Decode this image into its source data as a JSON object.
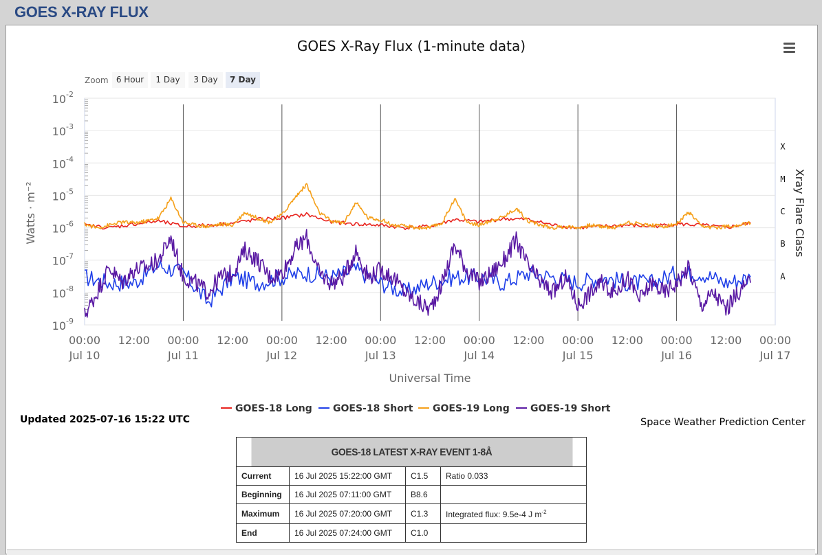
{
  "page": {
    "header": "GOES X-RAY FLUX"
  },
  "toolbar": {
    "zoom_label": "Zoom",
    "zoom_buttons": [
      "6 Hour",
      "1 Day",
      "3 Day",
      "7 Day"
    ],
    "zoom_selected": "7 Day"
  },
  "status": {
    "updated": "Updated 2025-07-16 15:22 UTC",
    "credit": "Space Weather Prediction Center"
  },
  "colors": {
    "goes18_long": "#e8231e",
    "goes18_short": "#1f3fe8",
    "goes19_long": "#f5a01a",
    "goes19_short": "#5a1aa3",
    "header_text": "#2a4a84"
  },
  "chart_data": {
    "type": "line",
    "title": "GOES X-Ray Flux (1-minute data)",
    "xlabel": "Universal Time",
    "ylabel": "Watts · m⁻²",
    "y2label": "Xray Flare Class",
    "yscale": "log",
    "ylim": [
      1e-09,
      0.01
    ],
    "y_ticks": [
      {
        "base": "10",
        "exp": "-2"
      },
      {
        "base": "10",
        "exp": "-3"
      },
      {
        "base": "10",
        "exp": "-4"
      },
      {
        "base": "10",
        "exp": "-5"
      },
      {
        "base": "10",
        "exp": "-6"
      },
      {
        "base": "10",
        "exp": "-7"
      },
      {
        "base": "10",
        "exp": "-8"
      },
      {
        "base": "10",
        "exp": "-9"
      }
    ],
    "flare_classes": [
      {
        "label": "X",
        "value": 0.0001
      },
      {
        "label": "M",
        "value": 1e-05
      },
      {
        "label": "C",
        "value": 1e-06
      },
      {
        "label": "B",
        "value": 1e-07
      },
      {
        "label": "A",
        "value": 1e-08
      }
    ],
    "xlim": [
      "2025-07-10 00:00",
      "2025-07-17 00:00"
    ],
    "x_ticks": [
      {
        "time": "00:00",
        "date": "Jul 10"
      },
      {
        "time": "12:00",
        "date": ""
      },
      {
        "time": "00:00",
        "date": "Jul 11"
      },
      {
        "time": "12:00",
        "date": ""
      },
      {
        "time": "00:00",
        "date": "Jul 12"
      },
      {
        "time": "12:00",
        "date": ""
      },
      {
        "time": "00:00",
        "date": "Jul 13"
      },
      {
        "time": "12:00",
        "date": ""
      },
      {
        "time": "00:00",
        "date": "Jul 14"
      },
      {
        "time": "12:00",
        "date": ""
      },
      {
        "time": "00:00",
        "date": "Jul 15"
      },
      {
        "time": "12:00",
        "date": ""
      },
      {
        "time": "00:00",
        "date": "Jul 16"
      },
      {
        "time": "12:00",
        "date": ""
      },
      {
        "time": "00:00",
        "date": "Jul 17"
      }
    ],
    "x_time_unit": "hours since Jul 10 00:00 UTC",
    "series": [
      {
        "name": "GOES-18 Long",
        "x": [
          0,
          6,
          12,
          18,
          24,
          30,
          36,
          42,
          48,
          54,
          60,
          66,
          72,
          78,
          84,
          90,
          96,
          102,
          108,
          114,
          120,
          126,
          132,
          138,
          144,
          150,
          156,
          162
        ],
        "y": [
          1.2e-06,
          1e-06,
          1.3e-06,
          1.6e-06,
          1.1e-06,
          1.2e-06,
          1.4e-06,
          1.8e-06,
          2e-06,
          2.6e-06,
          1.5e-06,
          1.3e-06,
          1.2e-06,
          1e-06,
          1.1e-06,
          1.8e-06,
          1.5e-06,
          1.9e-06,
          1.8e-06,
          1.2e-06,
          1e-06,
          1.1e-06,
          1.2e-06,
          1.1e-06,
          1.3e-06,
          1.2e-06,
          1e-06,
          1.4e-06
        ]
      },
      {
        "name": "GOES-18 Short",
        "x": [
          0,
          6,
          12,
          18,
          24,
          30,
          36,
          42,
          48,
          54,
          60,
          66,
          72,
          78,
          84,
          90,
          96,
          102,
          108,
          114,
          120,
          126,
          132,
          138,
          144,
          150,
          156,
          162
        ],
        "y": [
          3e-08,
          2e-08,
          2e-08,
          7e-08,
          4e-08,
          5e-09,
          3e-08,
          2e-08,
          3e-08,
          4e-08,
          3e-08,
          5e-08,
          2e-08,
          1e-08,
          2e-08,
          3e-08,
          3e-08,
          2e-08,
          4e-08,
          3e-08,
          2e-08,
          3e-08,
          2e-08,
          2e-08,
          4e-08,
          4e-08,
          2e-08,
          3e-08
        ]
      },
      {
        "name": "GOES-19 Long",
        "x": [
          0,
          3,
          6,
          9,
          12,
          15,
          18,
          21,
          24,
          27,
          30,
          33,
          36,
          39,
          42,
          45,
          48,
          51,
          54,
          57,
          60,
          63,
          66,
          69,
          72,
          75,
          78,
          81,
          84,
          87,
          90,
          93,
          96,
          99,
          102,
          105,
          108,
          111,
          114,
          117,
          120,
          123,
          126,
          129,
          132,
          135,
          138,
          141,
          144,
          147,
          150,
          153,
          156,
          159,
          162
        ],
        "y": [
          1.3e-06,
          1e-06,
          1.2e-06,
          1.5e-06,
          1.4e-06,
          1.6e-06,
          2e-06,
          8e-06,
          1.5e-06,
          1.2e-06,
          1.1e-06,
          1.3e-06,
          1.2e-06,
          3e-06,
          2e-06,
          1.5e-06,
          2.5e-06,
          8e-06,
          2.2e-05,
          3e-06,
          1.6e-06,
          1.4e-06,
          6e-06,
          2e-06,
          1.8e-06,
          1.2e-06,
          1.1e-06,
          1e-06,
          1e-06,
          1.4e-06,
          8e-06,
          1.5e-06,
          1.2e-06,
          1.7e-06,
          2.2e-06,
          4e-06,
          1.6e-06,
          1.2e-06,
          1e-06,
          1.1e-06,
          1e-06,
          1.2e-06,
          1.1e-06,
          1e-06,
          1.5e-06,
          1.3e-06,
          1.2e-06,
          1.1e-06,
          1.3e-06,
          3e-06,
          1.1e-06,
          1e-06,
          1.1e-06,
          1.2e-06,
          1.4e-06
        ]
      },
      {
        "name": "GOES-19 Short",
        "x": [
          0,
          3,
          6,
          9,
          12,
          15,
          18,
          21,
          24,
          27,
          30,
          33,
          36,
          39,
          42,
          45,
          48,
          51,
          54,
          57,
          60,
          63,
          66,
          69,
          72,
          75,
          78,
          81,
          84,
          87,
          90,
          93,
          96,
          99,
          102,
          105,
          108,
          111,
          114,
          117,
          120,
          123,
          126,
          129,
          132,
          135,
          138,
          141,
          144,
          147,
          150,
          153,
          156,
          159,
          162
        ],
        "y": [
          2e-09,
          1e-08,
          6e-08,
          2e-08,
          5e-08,
          6e-08,
          1e-07,
          5e-07,
          3e-08,
          2e-08,
          1e-08,
          3e-08,
          4e-08,
          2e-07,
          1e-07,
          3e-08,
          4e-08,
          2e-07,
          5e-07,
          4e-08,
          2e-08,
          3e-08,
          2e-07,
          3e-08,
          5e-08,
          3e-08,
          1e-08,
          5e-09,
          3e-09,
          2e-08,
          3e-07,
          5e-08,
          2e-08,
          4e-08,
          1e-07,
          4e-07,
          6e-08,
          2e-08,
          1e-08,
          3e-08,
          4e-09,
          1e-08,
          2e-08,
          1e-08,
          3e-08,
          6e-09,
          2e-08,
          1e-08,
          2e-08,
          6e-08,
          4e-09,
          1e-08,
          3e-09,
          1e-08,
          2e-08
        ]
      }
    ]
  },
  "event_table": {
    "title": "GOES-18 LATEST X-RAY EVENT 1-8Å",
    "rows": [
      {
        "label": "Current",
        "datetime": "16 Jul 2025 15:22:00 GMT",
        "class": "C1.5",
        "extra": "Ratio 0.033"
      },
      {
        "label": "Beginning",
        "datetime": "16 Jul 2025 07:11:00 GMT",
        "class": "B8.6",
        "extra": ""
      },
      {
        "label": "Maximum",
        "datetime": "16 Jul 2025 07:20:00 GMT",
        "class": "C1.3",
        "extra": "Integrated flux: 9.5e-4 J m",
        "extra_sup": "-2"
      },
      {
        "label": "End",
        "datetime": "16 Jul 2025 07:24:00 GMT",
        "class": "C1.0",
        "extra": ""
      }
    ]
  }
}
